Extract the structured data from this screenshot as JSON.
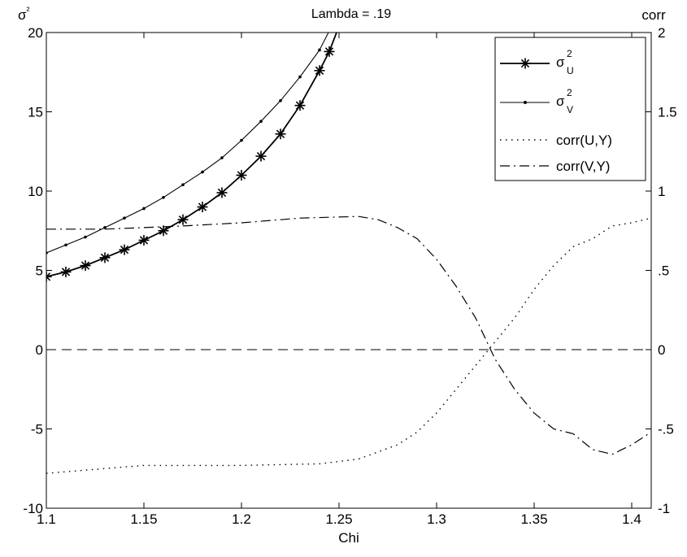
{
  "chart_data": {
    "type": "line",
    "title": "Lambda = .19",
    "xlabel": "Chi",
    "ylabel_left": "σ²",
    "ylabel_right": "corr",
    "xlim": [
      1.1,
      1.41
    ],
    "ylim_left": [
      -10,
      20
    ],
    "ylim_right": [
      -1,
      2
    ],
    "x_ticks": [
      1.1,
      1.15,
      1.2,
      1.25,
      1.3,
      1.35,
      1.4
    ],
    "x_tick_labels": [
      "1.1",
      "1.15",
      "1.2",
      "1.25",
      "1.3",
      "1.35",
      "1.4"
    ],
    "y_left_ticks": [
      -10,
      -5,
      0,
      5,
      10,
      15,
      20
    ],
    "y_left_tick_labels": [
      "-10",
      "-5",
      "0",
      "5",
      "10",
      "15",
      "20"
    ],
    "y_right_ticks": [
      -1,
      -0.5,
      0,
      0.5,
      1,
      1.5,
      2
    ],
    "y_right_tick_labels": [
      "-1",
      "-.5",
      "0",
      ".5",
      "1",
      "1.5",
      "2"
    ],
    "reference_line": {
      "y": 0,
      "axis": "left",
      "style": "dashed"
    },
    "legend_position": "top-right",
    "series": [
      {
        "name": "σ_U^2",
        "legend_main": "σ",
        "legend_sup": "2",
        "legend_sub": "U",
        "axis": "left",
        "style": "solid-asterisk",
        "color": "#000000",
        "x": [
          1.1,
          1.11,
          1.12,
          1.13,
          1.14,
          1.15,
          1.16,
          1.17,
          1.18,
          1.19,
          1.2,
          1.21,
          1.22,
          1.23,
          1.24,
          1.245,
          1.25
        ],
        "y": [
          4.6,
          4.9,
          5.3,
          5.8,
          6.3,
          6.9,
          7.5,
          8.2,
          9.0,
          9.9,
          11.0,
          12.2,
          13.6,
          15.4,
          17.6,
          18.8,
          20.4
        ]
      },
      {
        "name": "σ_V^2",
        "legend_main": "σ",
        "legend_sup": "2",
        "legend_sub": "V",
        "axis": "left",
        "style": "solid-dot",
        "color": "#000000",
        "x": [
          1.1,
          1.11,
          1.12,
          1.13,
          1.14,
          1.15,
          1.16,
          1.17,
          1.18,
          1.19,
          1.2,
          1.21,
          1.22,
          1.23,
          1.24,
          1.245
        ],
        "y": [
          6.1,
          6.6,
          7.1,
          7.7,
          8.3,
          8.9,
          9.6,
          10.4,
          11.2,
          12.1,
          13.2,
          14.4,
          15.7,
          17.2,
          18.9,
          20.1
        ]
      },
      {
        "name": "corr(U,Y)",
        "axis": "right",
        "style": "dotted",
        "color": "#000000",
        "x": [
          1.1,
          1.12,
          1.14,
          1.15,
          1.2,
          1.24,
          1.26,
          1.28,
          1.29,
          1.3,
          1.31,
          1.32,
          1.33,
          1.34,
          1.35,
          1.36,
          1.37,
          1.38,
          1.39,
          1.4,
          1.41
        ],
        "y": [
          -0.78,
          -0.76,
          -0.74,
          -0.73,
          -0.73,
          -0.72,
          -0.69,
          -0.6,
          -0.52,
          -0.4,
          -0.25,
          -0.1,
          0.05,
          0.2,
          0.38,
          0.53,
          0.65,
          0.7,
          0.78,
          0.8,
          0.83
        ]
      },
      {
        "name": "corr(V,Y)",
        "axis": "right",
        "style": "dash-dot",
        "color": "#000000",
        "x": [
          1.1,
          1.13,
          1.17,
          1.2,
          1.23,
          1.26,
          1.27,
          1.28,
          1.29,
          1.3,
          1.31,
          1.32,
          1.33,
          1.34,
          1.35,
          1.36,
          1.37,
          1.38,
          1.39,
          1.4,
          1.41
        ],
        "y": [
          0.76,
          0.76,
          0.78,
          0.8,
          0.83,
          0.84,
          0.82,
          0.77,
          0.7,
          0.57,
          0.4,
          0.2,
          -0.06,
          -0.25,
          -0.4,
          -0.5,
          -0.53,
          -0.63,
          -0.66,
          -0.6,
          -0.52
        ]
      }
    ]
  }
}
